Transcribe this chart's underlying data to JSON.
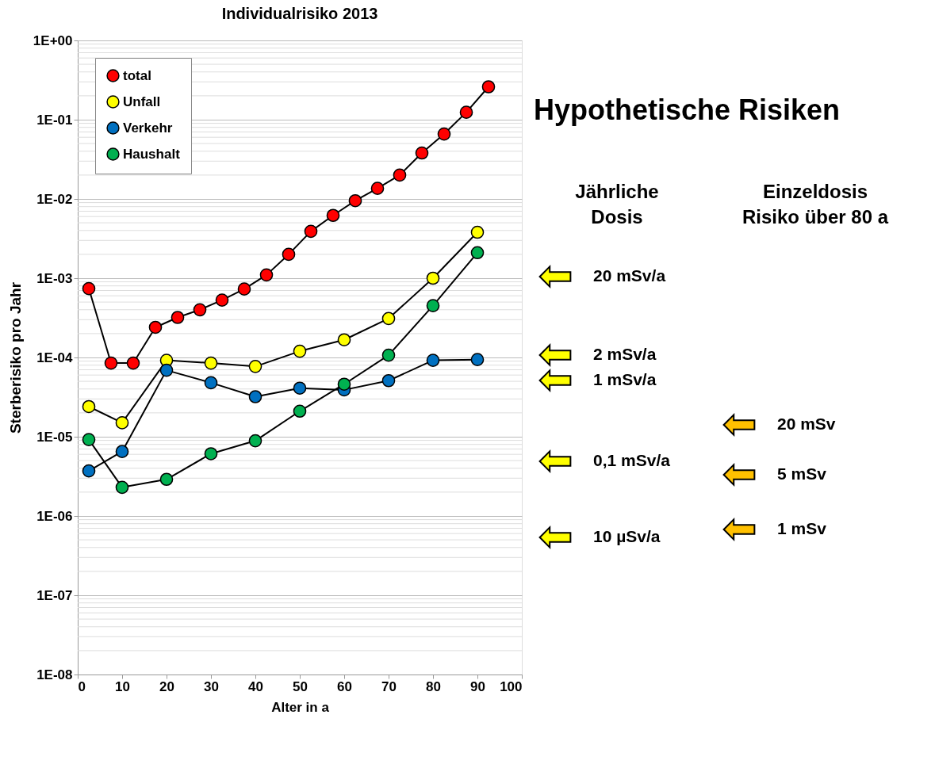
{
  "chart_data": {
    "type": "line",
    "title": "Individualrisiko 2013",
    "xlabel": "Alter in a",
    "ylabel": "Sterberisiko pro Jahr",
    "log": "y",
    "grid": "y",
    "legend": "top left",
    "marker": "circle",
    "line_style": "solid",
    "xlim": [
      0,
      100
    ],
    "xticks": [
      0,
      10,
      20,
      30,
      40,
      50,
      60,
      70,
      80,
      90,
      100
    ],
    "ylim": [
      1e-08,
      1
    ],
    "yticks": [
      {
        "value": 1e-08,
        "label": "1E-08"
      },
      {
        "value": 1e-07,
        "label": "1E-07"
      },
      {
        "value": 1e-06,
        "label": "1E-06"
      },
      {
        "value": 1e-05,
        "label": "1E-05"
      },
      {
        "value": 0.0001,
        "label": "1E-04"
      },
      {
        "value": 0.001,
        "label": "1E-03"
      },
      {
        "value": 0.01,
        "label": "1E-02"
      },
      {
        "value": 0.1,
        "label": "1E-01"
      },
      {
        "value": 1,
        "label": "1E+00"
      }
    ],
    "series": [
      {
        "name": "total",
        "color": "#ff0000",
        "x": [
          2.5,
          7.5,
          12.5,
          17.5,
          22.5,
          27.5,
          32.5,
          37.5,
          42.5,
          47.5,
          52.5,
          57.5,
          62.5,
          67.5,
          72.5,
          77.5,
          82.5,
          87.5,
          92.5
        ],
        "values": [
          0.00074,
          8.5e-05,
          8.5e-05,
          0.00024,
          0.00032,
          0.0004,
          0.00053,
          0.00073,
          0.0011,
          0.002,
          0.0039,
          0.0062,
          0.0095,
          0.0136,
          0.02,
          0.038,
          0.066,
          0.124,
          0.26
        ]
      },
      {
        "name": "Unfall",
        "color": "#ffff00",
        "x": [
          2.5,
          10,
          20,
          30,
          40,
          50,
          60,
          70,
          80,
          90
        ],
        "values": [
          2.4e-05,
          1.5e-05,
          9.2e-05,
          8.5e-05,
          7.7e-05,
          0.00012,
          0.000167,
          0.00031,
          0.001,
          0.0038
        ]
      },
      {
        "name": "Verkehr",
        "color": "#0070c0",
        "x": [
          2.5,
          10,
          20,
          30,
          40,
          50,
          60,
          70,
          80,
          90
        ],
        "values": [
          3.7e-06,
          6.5e-06,
          6.9e-05,
          4.8e-05,
          3.2e-05,
          4.1e-05,
          3.9e-05,
          5.1e-05,
          9.2e-05,
          9.4e-05
        ]
      },
      {
        "name": "Haushalt",
        "color": "#00b050",
        "x": [
          2.5,
          10,
          20,
          30,
          40,
          50,
          60,
          70,
          80,
          90
        ],
        "values": [
          9.2e-06,
          2.3e-06,
          2.9e-06,
          6.1e-06,
          8.9e-06,
          2.1e-05,
          4.6e-05,
          0.000107,
          0.00045,
          0.0021
        ]
      }
    ],
    "annotations": [
      "Hypothetische Risiken",
      "Jährliche\nDosis",
      "Einzeldosis\nRisiko über 80 a",
      "20 mSv/a",
      "2 mSv/a",
      "1 mSv/a",
      "0,1 mSv/a",
      "10 µSv/a",
      "20 mSv",
      "5 mSv",
      "1 mSv"
    ]
  }
}
